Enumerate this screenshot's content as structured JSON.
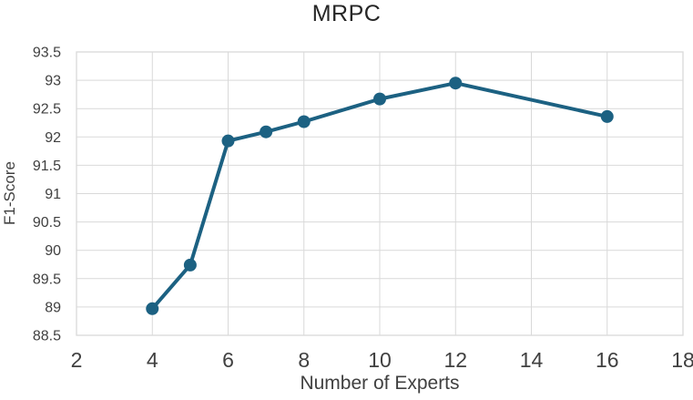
{
  "chart_data": {
    "type": "line",
    "title": "MRPC",
    "xlabel": "Number of Experts",
    "ylabel": "F1-Score",
    "x": [
      4,
      5,
      6,
      7,
      8,
      10,
      12,
      16
    ],
    "y": [
      88.97,
      89.74,
      91.93,
      92.09,
      92.27,
      92.67,
      92.95,
      92.36
    ],
    "xlim": [
      2,
      18
    ],
    "ylim": [
      88.5,
      93.5
    ],
    "x_tick_labels": [
      "2",
      "4",
      "6",
      "8",
      "10",
      "12",
      "14",
      "16",
      "18"
    ],
    "x_tick_values": [
      2,
      4,
      6,
      8,
      10,
      12,
      14,
      16,
      18
    ],
    "y_tick_labels": [
      "88.5",
      "89",
      "89.5",
      "90",
      "90.5",
      "91",
      "91.5",
      "92",
      "92.5",
      "93",
      "93.5"
    ],
    "y_tick_values": [
      88.5,
      89,
      89.5,
      90,
      90.5,
      91,
      91.5,
      92,
      92.5,
      93,
      93.5
    ],
    "grid": true,
    "legend": false,
    "marker": "circle",
    "colors": {
      "line": "#1C6182",
      "grid": "#D9D9D9",
      "axis_text": "#404040",
      "title_text": "#262626",
      "background": "#FFFFFF"
    }
  }
}
